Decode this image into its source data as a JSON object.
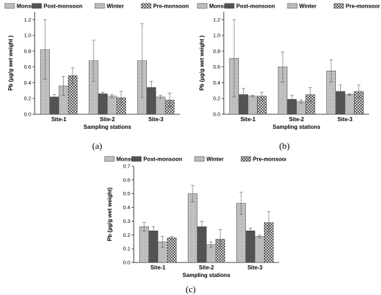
{
  "panels": [
    "(a)",
    "(b)",
    "(c)"
  ],
  "chart_data": [
    {
      "type": "bar",
      "title": "",
      "xlabel": "Sampling stations",
      "ylabel": "Pb (µg/g wet weight )",
      "ylim": [
        0,
        1.3
      ],
      "yticks": [
        "0.0",
        "0.2",
        "0.4",
        "0.6",
        "0.8",
        "1.0",
        "1.2"
      ],
      "categories": [
        "Site-1",
        "Site-2",
        "Site-3"
      ],
      "legend": "top",
      "series": [
        {
          "name": "Monsoon",
          "values": [
            0.82,
            0.68,
            0.68
          ],
          "errors": [
            0.38,
            0.26,
            0.47
          ]
        },
        {
          "name": "Post-monsoon",
          "values": [
            0.22,
            0.26,
            0.34
          ],
          "errors": [
            0.03,
            0.02,
            0.08
          ]
        },
        {
          "name": "Winter",
          "values": [
            0.36,
            0.23,
            0.22
          ],
          "errors": [
            0.12,
            0.02,
            0.02
          ]
        },
        {
          "name": "Pre-monsoon",
          "values": [
            0.49,
            0.21,
            0.18
          ],
          "errors": [
            0.1,
            0.08,
            0.09
          ]
        }
      ]
    },
    {
      "type": "bar",
      "title": "",
      "xlabel": "Sampling stations",
      "ylabel": "Pb (µg/g wet weight )",
      "ylim": [
        0,
        1.3
      ],
      "yticks": [
        "0.0",
        "0.2",
        "0.4",
        "0.6",
        "0.8",
        "1.0",
        "1.2"
      ],
      "categories": [
        "Site-1",
        "Site-2",
        "Site-3"
      ],
      "legend": "top",
      "series": [
        {
          "name": "Monsoon",
          "values": [
            0.71,
            0.6,
            0.55
          ],
          "errors": [
            0.49,
            0.19,
            0.14
          ]
        },
        {
          "name": "Post-monsoon",
          "values": [
            0.25,
            0.19,
            0.29
          ],
          "errors": [
            0.08,
            0.05,
            0.08
          ]
        },
        {
          "name": "Winter",
          "values": [
            0.23,
            0.16,
            0.25
          ],
          "errors": [
            0.01,
            0.02,
            0.01
          ]
        },
        {
          "name": "Pre-monsoon",
          "values": [
            0.23,
            0.25,
            0.29
          ],
          "errors": [
            0.05,
            0.09,
            0.08
          ]
        }
      ]
    },
    {
      "type": "bar",
      "title": "",
      "xlabel": "Sampling stations",
      "ylabel": "Pb (µg/g wet weight)",
      "ylim": [
        0,
        0.7
      ],
      "yticks": [
        "0.0",
        "0.1",
        "0.2",
        "0.3",
        "0.4",
        "0.5",
        "0.6",
        "0.7"
      ],
      "categories": [
        "Site-1",
        "Site-2",
        "Site-3"
      ],
      "legend": "top",
      "series": [
        {
          "name": "Monsoon",
          "values": [
            0.26,
            0.5,
            0.43
          ],
          "errors": [
            0.03,
            0.06,
            0.08
          ]
        },
        {
          "name": "Post-monsoon",
          "values": [
            0.23,
            0.26,
            0.23
          ],
          "errors": [
            0.03,
            0.04,
            0.02
          ]
        },
        {
          "name": "Winter",
          "values": [
            0.15,
            0.13,
            0.19
          ],
          "errors": [
            0.04,
            0.02,
            0.01
          ]
        },
        {
          "name": "Pre-monsoon",
          "values": [
            0.18,
            0.17,
            0.29
          ],
          "errors": [
            0.01,
            0.07,
            0.08
          ]
        }
      ]
    }
  ]
}
